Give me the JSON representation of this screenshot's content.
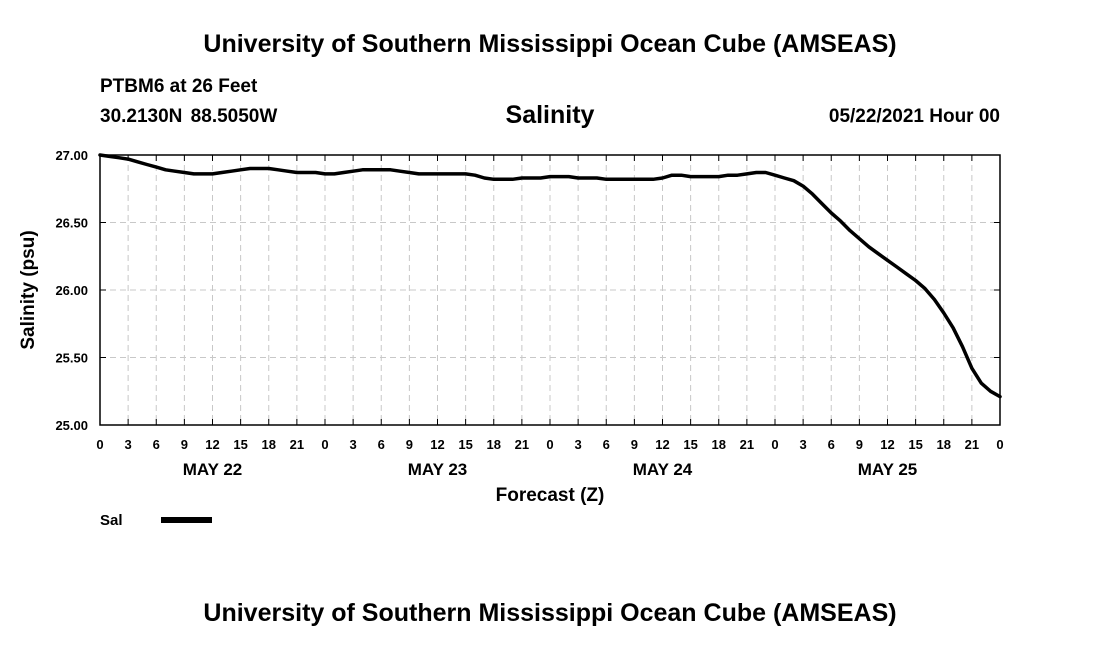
{
  "header": {
    "title": "University of Southern Mississippi Ocean Cube (AMSEAS)",
    "station": "PTBM6 at 26 Feet",
    "coords": "30.2130N  88.5050W",
    "run_date": "05/22/2021 Hour 00"
  },
  "footer": {
    "title": "University of Southern Mississippi Ocean Cube (AMSEAS)"
  },
  "chart_data": {
    "type": "line",
    "title": "Salinity",
    "xlabel": "Forecast (Z)",
    "ylabel": "Salinity (psu)",
    "ylim": [
      25.0,
      27.0
    ],
    "xlim_hours": [
      0,
      96
    ],
    "grid": true,
    "y_ticks": [
      "25.00",
      "25.50",
      "26.00",
      "26.50",
      "27.00"
    ],
    "x_tick_hours": [
      0,
      3,
      6,
      9,
      12,
      15,
      18,
      21,
      24,
      27,
      30,
      33,
      36,
      39,
      42,
      45,
      48,
      51,
      54,
      57,
      60,
      63,
      66,
      69,
      72,
      75,
      78,
      81,
      84,
      87,
      90,
      93,
      96
    ],
    "x_tick_labels": [
      "0",
      "3",
      "6",
      "9",
      "12",
      "15",
      "18",
      "21",
      "0",
      "3",
      "6",
      "9",
      "12",
      "15",
      "18",
      "21",
      "0",
      "3",
      "6",
      "9",
      "12",
      "15",
      "18",
      "21",
      "0",
      "3",
      "6",
      "9",
      "12",
      "15",
      "18",
      "21",
      "0"
    ],
    "day_labels": [
      {
        "hour": 12,
        "label": "MAY 22"
      },
      {
        "hour": 36,
        "label": "MAY 23"
      },
      {
        "hour": 60,
        "label": "MAY 24"
      },
      {
        "hour": 84,
        "label": "MAY 25"
      }
    ],
    "legend": {
      "position": "bottom-left",
      "entries": [
        "Sal"
      ]
    },
    "series": [
      {
        "name": "Sal",
        "color": "#000000",
        "x": [
          0,
          1,
          2,
          3,
          4,
          5,
          6,
          7,
          8,
          9,
          10,
          11,
          12,
          13,
          14,
          15,
          16,
          17,
          18,
          19,
          20,
          21,
          22,
          23,
          24,
          25,
          26,
          27,
          28,
          29,
          30,
          31,
          32,
          33,
          34,
          35,
          36,
          37,
          38,
          39,
          40,
          41,
          42,
          43,
          44,
          45,
          46,
          47,
          48,
          49,
          50,
          51,
          52,
          53,
          54,
          55,
          56,
          57,
          58,
          59,
          60,
          61,
          62,
          63,
          64,
          65,
          66,
          67,
          68,
          69,
          70,
          71,
          72,
          73,
          74,
          75,
          76,
          77,
          78,
          79,
          80,
          81,
          82,
          83,
          84,
          85,
          86,
          87,
          88,
          89,
          90,
          91,
          92,
          93,
          94,
          95,
          96
        ],
        "values": [
          27.0,
          26.99,
          26.98,
          26.97,
          26.95,
          26.93,
          26.91,
          26.89,
          26.88,
          26.87,
          26.86,
          26.86,
          26.86,
          26.87,
          26.88,
          26.89,
          26.9,
          26.9,
          26.9,
          26.89,
          26.88,
          26.87,
          26.87,
          26.87,
          26.86,
          26.86,
          26.87,
          26.88,
          26.89,
          26.89,
          26.89,
          26.89,
          26.88,
          26.87,
          26.86,
          26.86,
          26.86,
          26.86,
          26.86,
          26.86,
          26.85,
          26.83,
          26.82,
          26.82,
          26.82,
          26.83,
          26.83,
          26.83,
          26.84,
          26.84,
          26.84,
          26.83,
          26.83,
          26.83,
          26.82,
          26.82,
          26.82,
          26.82,
          26.82,
          26.82,
          26.83,
          26.85,
          26.85,
          26.84,
          26.84,
          26.84,
          26.84,
          26.85,
          26.85,
          26.86,
          26.87,
          26.87,
          26.85,
          26.83,
          26.81,
          26.77,
          26.71,
          26.64,
          26.57,
          26.51,
          26.44,
          26.38,
          26.32,
          26.27,
          26.22,
          26.17,
          26.12,
          26.07,
          26.01,
          25.93,
          25.83,
          25.72,
          25.58,
          25.42,
          25.31,
          25.25,
          25.21
        ]
      }
    ]
  }
}
